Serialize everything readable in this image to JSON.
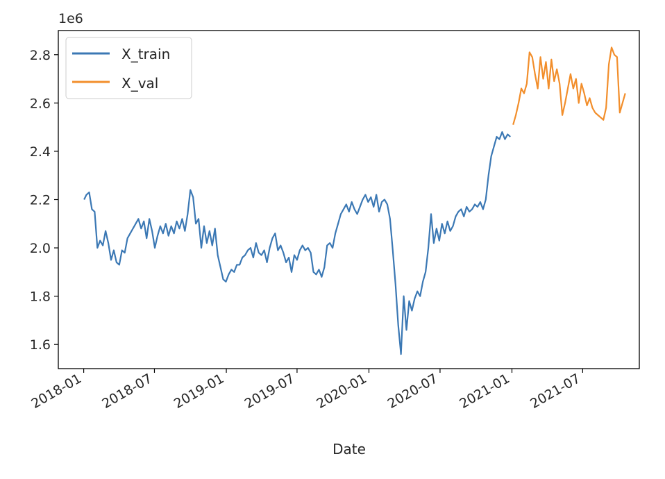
{
  "chart_data": {
    "type": "line",
    "xlabel": "Date",
    "ylabel": "",
    "y_offset_label": "1e6",
    "x_type": "date",
    "xlim": [
      "2017-10-28",
      "2021-11-23"
    ],
    "ylim": [
      1.5,
      2.9
    ],
    "y_ticks": [
      1.6,
      1.8,
      2.0,
      2.2,
      2.4,
      2.6,
      2.8
    ],
    "y_tick_labels": [
      "1.6",
      "1.8",
      "2.0",
      "2.2",
      "2.4",
      "2.6",
      "2.8"
    ],
    "x_ticks": [
      "2018-01-01",
      "2018-07-01",
      "2019-01-01",
      "2019-07-01",
      "2020-01-01",
      "2020-07-01",
      "2021-01-01",
      "2021-07-01"
    ],
    "x_tick_labels": [
      "2018-01",
      "2018-07",
      "2019-01",
      "2019-07",
      "2020-01",
      "2020-07",
      "2021-01",
      "2021-07"
    ],
    "grid": false,
    "legend_position": "top-left",
    "series": [
      {
        "name": "X_train",
        "color": "#3b78b4",
        "points": [
          [
            "2018-01-02",
            2.2
          ],
          [
            "2018-01-08",
            2.22
          ],
          [
            "2018-01-15",
            2.23
          ],
          [
            "2018-01-22",
            2.16
          ],
          [
            "2018-01-29",
            2.15
          ],
          [
            "2018-02-05",
            2.0
          ],
          [
            "2018-02-12",
            2.03
          ],
          [
            "2018-02-19",
            2.01
          ],
          [
            "2018-02-26",
            2.07
          ],
          [
            "2018-03-05",
            2.02
          ],
          [
            "2018-03-12",
            1.95
          ],
          [
            "2018-03-19",
            1.99
          ],
          [
            "2018-03-26",
            1.94
          ],
          [
            "2018-04-02",
            1.93
          ],
          [
            "2018-04-09",
            1.99
          ],
          [
            "2018-04-16",
            1.98
          ],
          [
            "2018-04-23",
            2.04
          ],
          [
            "2018-04-30",
            2.06
          ],
          [
            "2018-05-07",
            2.08
          ],
          [
            "2018-05-14",
            2.1
          ],
          [
            "2018-05-21",
            2.12
          ],
          [
            "2018-05-28",
            2.08
          ],
          [
            "2018-06-04",
            2.11
          ],
          [
            "2018-06-11",
            2.04
          ],
          [
            "2018-06-18",
            2.12
          ],
          [
            "2018-06-25",
            2.07
          ],
          [
            "2018-07-02",
            2.0
          ],
          [
            "2018-07-09",
            2.05
          ],
          [
            "2018-07-16",
            2.09
          ],
          [
            "2018-07-23",
            2.06
          ],
          [
            "2018-07-30",
            2.1
          ],
          [
            "2018-08-06",
            2.05
          ],
          [
            "2018-08-13",
            2.09
          ],
          [
            "2018-08-20",
            2.06
          ],
          [
            "2018-08-27",
            2.11
          ],
          [
            "2018-09-03",
            2.08
          ],
          [
            "2018-09-10",
            2.12
          ],
          [
            "2018-09-17",
            2.07
          ],
          [
            "2018-09-24",
            2.14
          ],
          [
            "2018-10-01",
            2.24
          ],
          [
            "2018-10-08",
            2.21
          ],
          [
            "2018-10-15",
            2.1
          ],
          [
            "2018-10-22",
            2.12
          ],
          [
            "2018-10-29",
            2.0
          ],
          [
            "2018-11-05",
            2.09
          ],
          [
            "2018-11-12",
            2.02
          ],
          [
            "2018-11-19",
            2.07
          ],
          [
            "2018-11-26",
            2.01
          ],
          [
            "2018-12-03",
            2.08
          ],
          [
            "2018-12-10",
            1.97
          ],
          [
            "2018-12-17",
            1.92
          ],
          [
            "2018-12-24",
            1.87
          ],
          [
            "2018-12-31",
            1.86
          ],
          [
            "2019-01-07",
            1.89
          ],
          [
            "2019-01-14",
            1.91
          ],
          [
            "2019-01-21",
            1.9
          ],
          [
            "2019-01-28",
            1.93
          ],
          [
            "2019-02-04",
            1.93
          ],
          [
            "2019-02-11",
            1.96
          ],
          [
            "2019-02-18",
            1.97
          ],
          [
            "2019-02-25",
            1.99
          ],
          [
            "2019-03-04",
            2.0
          ],
          [
            "2019-03-11",
            1.96
          ],
          [
            "2019-03-18",
            2.02
          ],
          [
            "2019-03-25",
            1.98
          ],
          [
            "2019-04-01",
            1.97
          ],
          [
            "2019-04-08",
            1.99
          ],
          [
            "2019-04-15",
            1.94
          ],
          [
            "2019-04-22",
            2.0
          ],
          [
            "2019-04-29",
            2.04
          ],
          [
            "2019-05-06",
            2.06
          ],
          [
            "2019-05-13",
            1.99
          ],
          [
            "2019-05-20",
            2.01
          ],
          [
            "2019-05-27",
            1.98
          ],
          [
            "2019-06-03",
            1.94
          ],
          [
            "2019-06-10",
            1.96
          ],
          [
            "2019-06-17",
            1.9
          ],
          [
            "2019-06-24",
            1.97
          ],
          [
            "2019-07-01",
            1.95
          ],
          [
            "2019-07-08",
            1.99
          ],
          [
            "2019-07-15",
            2.01
          ],
          [
            "2019-07-22",
            1.99
          ],
          [
            "2019-07-29",
            2.0
          ],
          [
            "2019-08-05",
            1.98
          ],
          [
            "2019-08-12",
            1.9
          ],
          [
            "2019-08-19",
            1.89
          ],
          [
            "2019-08-26",
            1.91
          ],
          [
            "2019-09-02",
            1.88
          ],
          [
            "2019-09-09",
            1.92
          ],
          [
            "2019-09-16",
            2.01
          ],
          [
            "2019-09-23",
            2.02
          ],
          [
            "2019-09-30",
            2.0
          ],
          [
            "2019-10-07",
            2.06
          ],
          [
            "2019-10-14",
            2.1
          ],
          [
            "2019-10-21",
            2.14
          ],
          [
            "2019-10-28",
            2.16
          ],
          [
            "2019-11-04",
            2.18
          ],
          [
            "2019-11-11",
            2.15
          ],
          [
            "2019-11-18",
            2.19
          ],
          [
            "2019-11-25",
            2.16
          ],
          [
            "2019-12-02",
            2.14
          ],
          [
            "2019-12-09",
            2.17
          ],
          [
            "2019-12-16",
            2.2
          ],
          [
            "2019-12-23",
            2.22
          ],
          [
            "2019-12-30",
            2.19
          ],
          [
            "2020-01-06",
            2.21
          ],
          [
            "2020-01-13",
            2.17
          ],
          [
            "2020-01-20",
            2.22
          ],
          [
            "2020-01-27",
            2.15
          ],
          [
            "2020-02-03",
            2.19
          ],
          [
            "2020-02-10",
            2.2
          ],
          [
            "2020-02-17",
            2.18
          ],
          [
            "2020-02-24",
            2.12
          ],
          [
            "2020-03-02",
            1.99
          ],
          [
            "2020-03-09",
            1.85
          ],
          [
            "2020-03-16",
            1.68
          ],
          [
            "2020-03-23",
            1.56
          ],
          [
            "2020-03-30",
            1.8
          ],
          [
            "2020-04-06",
            1.66
          ],
          [
            "2020-04-13",
            1.78
          ],
          [
            "2020-04-20",
            1.74
          ],
          [
            "2020-04-27",
            1.79
          ],
          [
            "2020-05-04",
            1.82
          ],
          [
            "2020-05-11",
            1.8
          ],
          [
            "2020-05-18",
            1.86
          ],
          [
            "2020-05-25",
            1.9
          ],
          [
            "2020-06-01",
            2.0
          ],
          [
            "2020-06-08",
            2.14
          ],
          [
            "2020-06-15",
            2.02
          ],
          [
            "2020-06-22",
            2.08
          ],
          [
            "2020-06-29",
            2.03
          ],
          [
            "2020-07-06",
            2.1
          ],
          [
            "2020-07-13",
            2.06
          ],
          [
            "2020-07-20",
            2.11
          ],
          [
            "2020-07-27",
            2.07
          ],
          [
            "2020-08-03",
            2.09
          ],
          [
            "2020-08-10",
            2.13
          ],
          [
            "2020-08-17",
            2.15
          ],
          [
            "2020-08-24",
            2.16
          ],
          [
            "2020-08-31",
            2.13
          ],
          [
            "2020-09-07",
            2.17
          ],
          [
            "2020-09-14",
            2.15
          ],
          [
            "2020-09-21",
            2.16
          ],
          [
            "2020-09-28",
            2.18
          ],
          [
            "2020-10-05",
            2.17
          ],
          [
            "2020-10-12",
            2.19
          ],
          [
            "2020-10-19",
            2.16
          ],
          [
            "2020-10-26",
            2.2
          ],
          [
            "2020-11-02",
            2.3
          ],
          [
            "2020-11-09",
            2.38
          ],
          [
            "2020-11-16",
            2.42
          ],
          [
            "2020-11-23",
            2.46
          ],
          [
            "2020-11-30",
            2.45
          ],
          [
            "2020-12-07",
            2.48
          ],
          [
            "2020-12-14",
            2.45
          ],
          [
            "2020-12-21",
            2.47
          ],
          [
            "2020-12-28",
            2.46
          ]
        ]
      },
      {
        "name": "X_val",
        "color": "#f28e2b",
        "points": [
          [
            "2021-01-04",
            2.51
          ],
          [
            "2021-01-11",
            2.55
          ],
          [
            "2021-01-18",
            2.6
          ],
          [
            "2021-01-25",
            2.66
          ],
          [
            "2021-02-01",
            2.64
          ],
          [
            "2021-02-08",
            2.68
          ],
          [
            "2021-02-15",
            2.81
          ],
          [
            "2021-02-22",
            2.79
          ],
          [
            "2021-03-01",
            2.72
          ],
          [
            "2021-03-08",
            2.66
          ],
          [
            "2021-03-15",
            2.79
          ],
          [
            "2021-03-22",
            2.7
          ],
          [
            "2021-03-29",
            2.77
          ],
          [
            "2021-04-05",
            2.66
          ],
          [
            "2021-04-12",
            2.78
          ],
          [
            "2021-04-19",
            2.69
          ],
          [
            "2021-04-26",
            2.74
          ],
          [
            "2021-05-03",
            2.68
          ],
          [
            "2021-05-10",
            2.55
          ],
          [
            "2021-05-17",
            2.6
          ],
          [
            "2021-05-24",
            2.66
          ],
          [
            "2021-05-31",
            2.72
          ],
          [
            "2021-06-07",
            2.66
          ],
          [
            "2021-06-14",
            2.7
          ],
          [
            "2021-06-21",
            2.6
          ],
          [
            "2021-06-28",
            2.68
          ],
          [
            "2021-07-05",
            2.64
          ],
          [
            "2021-07-12",
            2.59
          ],
          [
            "2021-07-19",
            2.62
          ],
          [
            "2021-07-26",
            2.58
          ],
          [
            "2021-08-02",
            2.56
          ],
          [
            "2021-08-09",
            2.55
          ],
          [
            "2021-08-16",
            2.54
          ],
          [
            "2021-08-23",
            2.53
          ],
          [
            "2021-08-30",
            2.58
          ],
          [
            "2021-09-06",
            2.76
          ],
          [
            "2021-09-13",
            2.83
          ],
          [
            "2021-09-20",
            2.8
          ],
          [
            "2021-09-27",
            2.79
          ],
          [
            "2021-10-04",
            2.56
          ],
          [
            "2021-10-11",
            2.6
          ],
          [
            "2021-10-18",
            2.64
          ]
        ]
      }
    ]
  }
}
